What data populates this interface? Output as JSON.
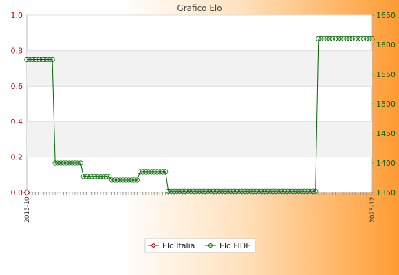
{
  "chart_data": {
    "type": "line",
    "title": "Grafico Elo",
    "y_left": {
      "min": 0.0,
      "max": 1.0,
      "ticks": [
        "0.0",
        "0.2",
        "0.4",
        "0.6",
        "0.8",
        "1.0"
      ],
      "color": "#cc0000"
    },
    "y_right": {
      "min": 1350,
      "max": 1650,
      "ticks": [
        "1350",
        "1400",
        "1450",
        "1500",
        "1550",
        "1600",
        "1650"
      ],
      "color": "#006600"
    },
    "x_first_label": "2015-10",
    "x_last_label": "2023-12",
    "series": [
      {
        "name": "Elo Italia",
        "color": "#cc0000",
        "axis": "left",
        "values": [
          0.0
        ]
      },
      {
        "name": "Elo FIDE",
        "color": "#006600",
        "axis": "right",
        "values": [
          1575,
          1575,
          1575,
          1575,
          1575,
          1575,
          1575,
          1575,
          1575,
          1575,
          1400,
          1400,
          1400,
          1400,
          1400,
          1400,
          1400,
          1400,
          1400,
          1400,
          1377,
          1377,
          1377,
          1377,
          1377,
          1377,
          1377,
          1377,
          1377,
          1377,
          1371,
          1371,
          1371,
          1371,
          1371,
          1371,
          1371,
          1371,
          1371,
          1371,
          1385,
          1385,
          1385,
          1385,
          1385,
          1385,
          1385,
          1385,
          1385,
          1385,
          1352,
          1352,
          1352,
          1352,
          1352,
          1352,
          1352,
          1352,
          1352,
          1352,
          1352,
          1352,
          1352,
          1352,
          1352,
          1352,
          1352,
          1352,
          1352,
          1352,
          1352,
          1352,
          1352,
          1352,
          1352,
          1352,
          1352,
          1352,
          1352,
          1352,
          1352,
          1352,
          1352,
          1352,
          1352,
          1352,
          1352,
          1352,
          1352,
          1352,
          1352,
          1352,
          1352,
          1352,
          1352,
          1352,
          1352,
          1352,
          1352,
          1352,
          1352,
          1352,
          1352,
          1610,
          1610,
          1610,
          1610,
          1610,
          1610,
          1610,
          1610,
          1610,
          1610,
          1610,
          1610,
          1610,
          1610,
          1610,
          1610,
          1610,
          1610,
          1610,
          1610
        ]
      }
    ],
    "grid": true,
    "legend_position": "bottom-center"
  }
}
